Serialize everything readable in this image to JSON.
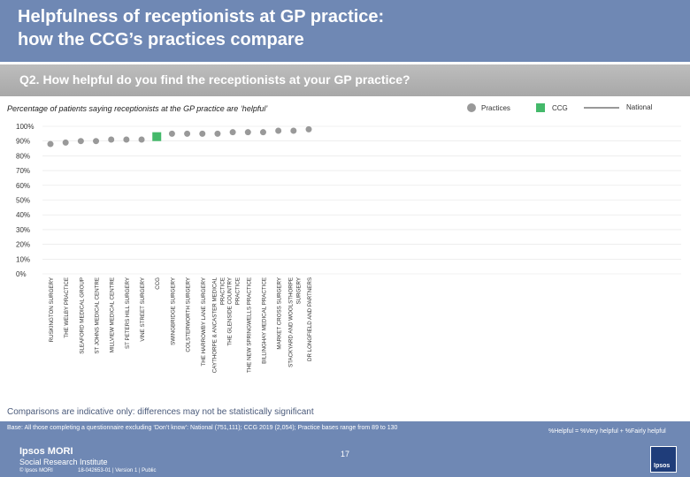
{
  "header": {
    "title_line1": "Helpfulness of receptionists at GP practice:",
    "title_line2": "how the CCG’s practices compare"
  },
  "question": "Q2. How helpful do you find the receptionists at your GP practice?",
  "subtitle": "Percentage of patients saying receptionists at the GP practice are ‘helpful’",
  "legend": {
    "practices": "Practices",
    "ccg": "CCG",
    "national": "National"
  },
  "colors": {
    "practices": "#999999",
    "ccg": "#44b96a",
    "national": "#999999",
    "header": "#6f88b4"
  },
  "chart_data": {
    "type": "scatter",
    "title": "",
    "xlabel": "",
    "ylabel": "",
    "ylim": [
      0,
      100
    ],
    "yticks": [
      "0%",
      "10%",
      "20%",
      "30%",
      "40%",
      "50%",
      "60%",
      "70%",
      "80%",
      "90%",
      "100%"
    ],
    "categories": [
      "RUSKINGTON SURGERY",
      "THE WELBY PRACTICE",
      "SLEAFORD MEDICAL GROUP",
      "ST JOHNS MEDICAL CENTRE",
      "MILLVIEW MEDICAL CENTRE",
      "ST PETERS HILL SURGERY",
      "VINE STREET SURGERY",
      "CCG",
      "SWINGBRIDGE SURGERY",
      "COLSTERWORTH SURGERY",
      "THE HARROWBY LANE SURGERY",
      "CAYTHORPE & ANCASTER MEDICAL PRACTICE",
      "THE GLENSIDE COUNTRY PRACTICE",
      "THE NEW SPRINGWELLS PRACTICE",
      "BILLINGHAY MEDICAL PRACTICE",
      "MARKET CROSS SURGERY",
      "STACKYARD AND WOOLSTHORPE SURGERY",
      "DR LONGFIELD AND PARTNERS"
    ],
    "values": [
      88,
      89,
      90,
      90,
      91,
      91,
      91,
      93,
      95,
      95,
      95,
      95,
      96,
      96,
      96,
      97,
      97,
      98
    ],
    "highlight_index": 7
  },
  "note": "Comparisons are indicative only: differences may not be statistically significant",
  "footer": {
    "base": "Base: All those completing a questionnaire excluding ‘Don’t know’: National (751,111); CCG 2019 (2,054); Practice bases range from 89 to 130",
    "helpful_def": "%Helpful = %Very helpful + %Fairly helpful",
    "logo_line1": "Ipsos MORI",
    "logo_line2": "Social Research Institute",
    "copyright": "© Ipsos MORI",
    "reference": "18-042653-01 | Version 1 | Public",
    "page": "17",
    "ipsos_logo": "Ipsos"
  }
}
